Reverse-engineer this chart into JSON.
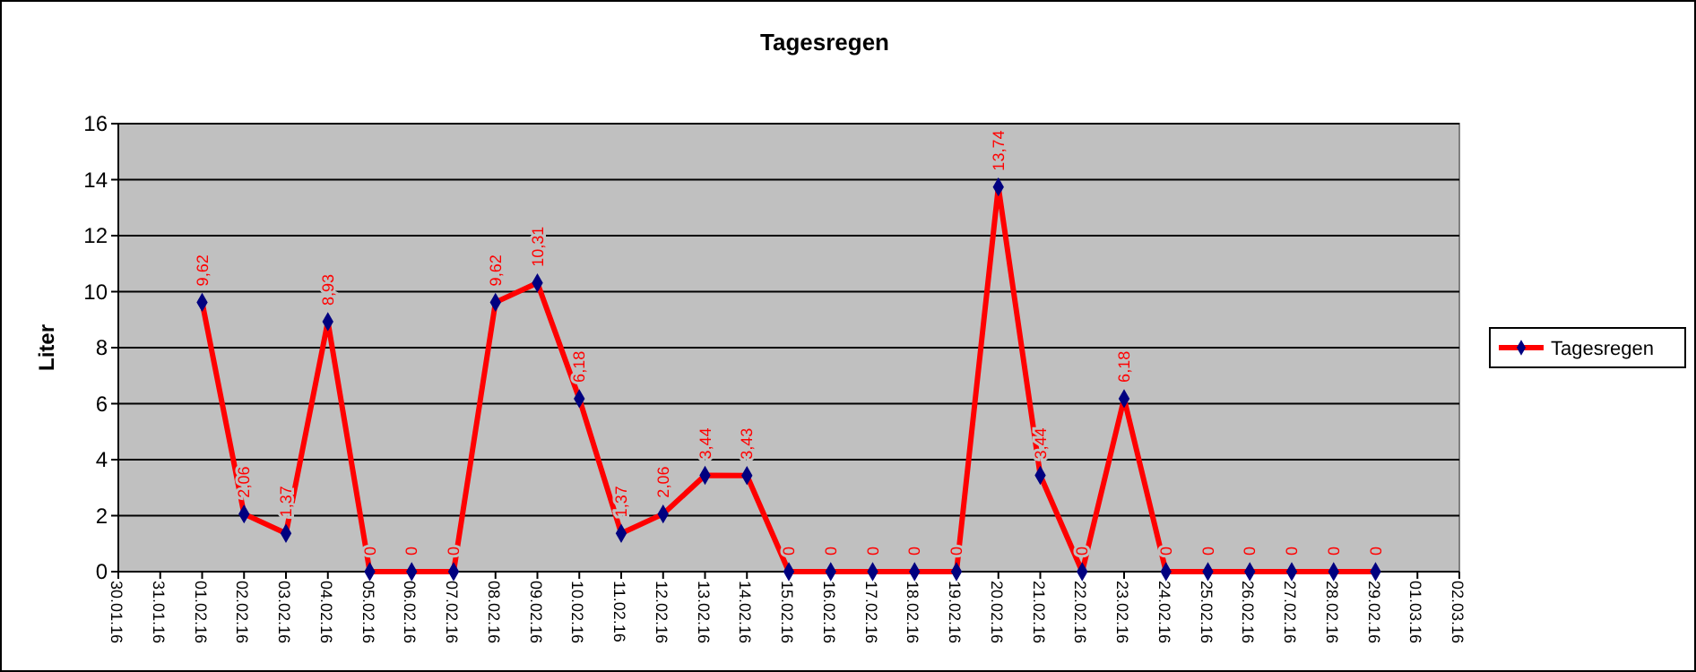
{
  "chart_data": {
    "type": "line",
    "title": "Tagesregen",
    "ylabel": "Liter",
    "categories": [
      "30.01.16",
      "31.01.16",
      "01.02.16",
      "02.02.16",
      "03.02.16",
      "04.02.16",
      "05.02.16",
      "06.02.16",
      "07.02.16",
      "08.02.16",
      "09.02.16",
      "10.02.16",
      "11.02.16",
      "12.02.16",
      "13.02.16",
      "14.02.16",
      "15.02.16",
      "16.02.16",
      "17.02.16",
      "18.02.16",
      "19.02.16",
      "20.02.16",
      "21.02.16",
      "22.02.16",
      "23.02.16",
      "24.02.16",
      "25.02.16",
      "26.02.16",
      "27.02.16",
      "28.02.16",
      "29.02.16",
      "01.03.16",
      "02.03.16"
    ],
    "series": [
      {
        "name": "Tagesregen",
        "color": "#ff0000",
        "marker": "diamond",
        "values": [
          null,
          null,
          9.62,
          2.06,
          1.37,
          8.93,
          0,
          0,
          0,
          9.62,
          10.31,
          6.18,
          1.37,
          2.06,
          3.44,
          3.43,
          0,
          0,
          0,
          0,
          0,
          13.74,
          3.44,
          0,
          6.18,
          0,
          0,
          0,
          0,
          0,
          0,
          null,
          null
        ],
        "value_labels": [
          null,
          null,
          "9,62",
          "2,06",
          "1,37",
          "8,93",
          "0",
          "0",
          "0",
          "9,62",
          "10,31",
          "6,18",
          "1,37",
          "2,06",
          "3,44",
          "3,43",
          "0",
          "0",
          "0",
          "0",
          "0",
          "13,74",
          "3,44",
          "0",
          "6,18",
          "0",
          "0",
          "0",
          "0",
          "0",
          "0",
          null,
          null
        ]
      }
    ],
    "ylim": [
      0,
      16
    ],
    "yticks": [
      0,
      2,
      4,
      6,
      8,
      10,
      12,
      14,
      16
    ],
    "grid": "y",
    "legend": "right"
  }
}
